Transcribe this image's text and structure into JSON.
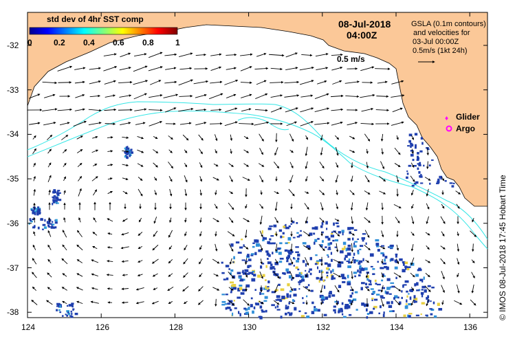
{
  "map": {
    "date": "08-Jul-2018",
    "time": "04:00Z",
    "scale_label": "0.5 m/s",
    "colorbar": {
      "title": "std dev of 4hr SST comp",
      "ticks": [
        "0",
        "0.2",
        "0.4",
        "0.6",
        "0.8",
        "1"
      ]
    },
    "gsla_note": [
      "GSLA (0.1m contours)",
      "and velocities for",
      "03-Jul 00:00Z",
      "0.5m/s (1kt 24h)"
    ],
    "legend": {
      "glider": "Glider",
      "argo": "Argo"
    },
    "y_ticks": [
      "-32",
      "-33",
      "-34",
      "-35",
      "-36",
      "-37",
      "-38"
    ],
    "x_ticks": [
      "124",
      "126",
      "128",
      "130",
      "132",
      "134",
      "136"
    ],
    "credit": "IMOS 08-Jul-2018 17:45 Hobart Time",
    "copyright": "©",
    "colors": {
      "land": "#fbc898",
      "contour": "#33e6e6",
      "sst_noise": "#1f3fae",
      "glider": "#ff00ff"
    }
  }
}
